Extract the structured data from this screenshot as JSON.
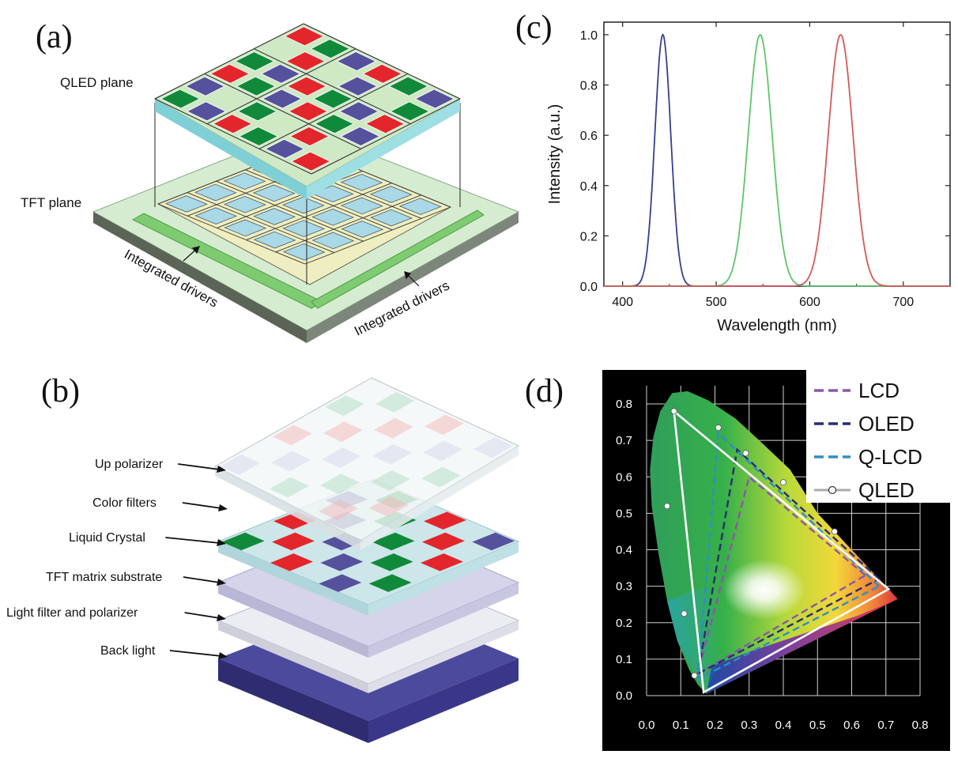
{
  "panels": {
    "a": {
      "label": "(a)",
      "qled_plane": "QLED plane",
      "tft_plane": "TFT plane",
      "drivers_left": "Integrated drivers",
      "drivers_right": "Integrated drivers",
      "colors": {
        "red": "#e3262b",
        "green": "#108a3a",
        "blue": "#55519c",
        "cyan": "#8fd4dc",
        "substrate": "#cfe9c5"
      }
    },
    "b": {
      "label": "(b)",
      "layers": [
        "Up polarizer",
        "Color filters",
        "Liquid Crystal",
        "TFT matrix substrate",
        "Light filter and polarizer",
        "Back light"
      ]
    },
    "c": {
      "label": "(c)"
    },
    "d": {
      "label": "(d)"
    }
  },
  "chart_data": [
    {
      "panel": "c",
      "type": "line",
      "xlabel": "Wavelength (nm)",
      "ylabel": "Intensity (a.u.)",
      "xlim": [
        380,
        750
      ],
      "ylim": [
        0.0,
        1.05
      ],
      "x_ticks": [
        400,
        500,
        600,
        700
      ],
      "x_tick_labels": [
        "400",
        "500",
        "600",
        "700"
      ],
      "y_ticks": [
        0.0,
        0.2,
        0.4,
        0.6,
        0.8,
        1.0
      ],
      "y_tick_labels": [
        "0.0",
        "0.2",
        "0.4",
        "0.6",
        "0.8",
        "1.0"
      ],
      "series": [
        {
          "name": "blue",
          "color": "#3a3d8f",
          "peak_nm": 443,
          "fwhm_nm": 20,
          "peak": 1.0
        },
        {
          "name": "green",
          "color": "#5fc46a",
          "peak_nm": 547,
          "fwhm_nm": 30,
          "peak": 1.0
        },
        {
          "name": "red",
          "color": "#d25a5a",
          "peak_nm": 633,
          "fwhm_nm": 31,
          "peak": 1.0
        }
      ]
    },
    {
      "panel": "d",
      "type": "scatter",
      "xlim": [
        0.0,
        0.8
      ],
      "ylim": [
        0.0,
        0.85
      ],
      "x_ticks": [
        0.0,
        0.1,
        0.2,
        0.3,
        0.4,
        0.5,
        0.6,
        0.7,
        0.8
      ],
      "x_tick_labels": [
        "0.0",
        "0.1",
        "0.2",
        "0.3",
        "0.4",
        "0.5",
        "0.6",
        "0.7",
        "0.8"
      ],
      "y_ticks": [
        0.0,
        0.1,
        0.2,
        0.3,
        0.4,
        0.5,
        0.6,
        0.7,
        0.8
      ],
      "y_tick_labels": [
        "0.0",
        "0.1",
        "0.2",
        "0.3",
        "0.4",
        "0.5",
        "0.6",
        "0.7",
        "0.8"
      ],
      "legend": [
        "LCD",
        "OLED",
        "Q-LCD",
        "QLED"
      ],
      "legend_colors": [
        "#8a58a8",
        "#2a2d6e",
        "#2f8fc1",
        "#ffffff"
      ],
      "series": [
        {
          "name": "LCD",
          "style": "dashed",
          "color": "#8a58a8",
          "points": [
            [
              0.64,
              0.33
            ],
            [
              0.3,
              0.6
            ],
            [
              0.15,
              0.06
            ]
          ]
        },
        {
          "name": "OLED",
          "style": "dashed",
          "color": "#2a2d6e",
          "points": [
            [
              0.68,
              0.32
            ],
            [
              0.265,
              0.675
            ],
            [
              0.15,
              0.06
            ]
          ]
        },
        {
          "name": "Q-LCD",
          "style": "dashed",
          "color": "#2f8fc1",
          "points": [
            [
              0.68,
              0.3
            ],
            [
              0.21,
              0.72
            ],
            [
              0.15,
              0.045
            ]
          ]
        },
        {
          "name": "QLED",
          "style": "solid",
          "color": "#ffffff",
          "points": [
            [
              0.708,
              0.292
            ],
            [
              0.08,
              0.78
            ],
            [
              0.167,
              0.009
            ]
          ]
        },
        {
          "name": "QLED markers",
          "style": "markers",
          "color": "#ffffff",
          "points": [
            [
              0.08,
              0.78
            ],
            [
              0.21,
              0.735
            ],
            [
              0.29,
              0.665
            ],
            [
              0.4,
              0.585
            ],
            [
              0.55,
              0.45
            ],
            [
              0.06,
              0.52
            ],
            [
              0.11,
              0.225
            ],
            [
              0.14,
              0.055
            ]
          ]
        }
      ]
    }
  ]
}
